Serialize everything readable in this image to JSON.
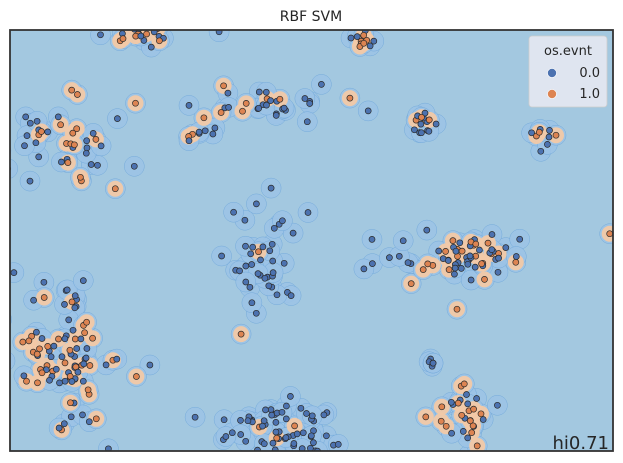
{
  "chart_data": {
    "type": "scatter",
    "title": "RBF SVM",
    "xlabel": "",
    "ylabel": "",
    "grid": false,
    "legend": {
      "title": "os.evnt",
      "placement": "top-right",
      "entries": [
        {
          "label": "0.0",
          "color": "#4c72b0"
        },
        {
          "label": "1.0",
          "color": "#dd8452"
        }
      ]
    },
    "annotation": "hi0.71",
    "colors": {
      "background_region": "#a3c8e0",
      "decision_region": "#f2c9a7",
      "class_0": "#4c72b0",
      "class_1": "#dd8452",
      "frame": "#333333"
    },
    "clusters": [
      {
        "cx": 0.23,
        "cy": 0.99,
        "sx": 0.03,
        "sy": 0.015,
        "n": 22,
        "orange_frac": 0.45
      },
      {
        "cx": 0.585,
        "cy": 0.975,
        "sx": 0.012,
        "sy": 0.02,
        "n": 14,
        "orange_frac": 0.5
      },
      {
        "cx": 0.09,
        "cy": 0.73,
        "sx": 0.07,
        "sy": 0.055,
        "n": 45,
        "orange_frac": 0.35
      },
      {
        "cx": 0.43,
        "cy": 0.83,
        "sx": 0.055,
        "sy": 0.02,
        "n": 30,
        "orange_frac": 0.2
      },
      {
        "cx": 0.32,
        "cy": 0.755,
        "sx": 0.02,
        "sy": 0.008,
        "n": 8,
        "orange_frac": 0.15
      },
      {
        "cx": 0.685,
        "cy": 0.775,
        "sx": 0.015,
        "sy": 0.012,
        "n": 14,
        "orange_frac": 0.3
      },
      {
        "cx": 0.885,
        "cy": 0.735,
        "sx": 0.01,
        "sy": 0.018,
        "n": 9,
        "orange_frac": 0.35
      },
      {
        "cx": 0.425,
        "cy": 0.44,
        "sx": 0.03,
        "sy": 0.06,
        "n": 40,
        "orange_frac": 0.05
      },
      {
        "cx": 0.745,
        "cy": 0.465,
        "sx": 0.06,
        "sy": 0.03,
        "n": 65,
        "orange_frac": 0.4
      },
      {
        "cx": 0.09,
        "cy": 0.22,
        "sx": 0.045,
        "sy": 0.09,
        "n": 95,
        "orange_frac": 0.4
      },
      {
        "cx": 0.7,
        "cy": 0.2,
        "sx": 0.003,
        "sy": 0.015,
        "n": 5,
        "orange_frac": 0.0
      },
      {
        "cx": 0.45,
        "cy": 0.05,
        "sx": 0.045,
        "sy": 0.035,
        "n": 65,
        "orange_frac": 0.05
      },
      {
        "cx": 0.755,
        "cy": 0.085,
        "sx": 0.025,
        "sy": 0.04,
        "n": 30,
        "orange_frac": 0.4
      },
      {
        "cx": 0.995,
        "cy": 0.515,
        "sx": 0.003,
        "sy": 0.003,
        "n": 1,
        "orange_frac": 1.0
      }
    ]
  }
}
